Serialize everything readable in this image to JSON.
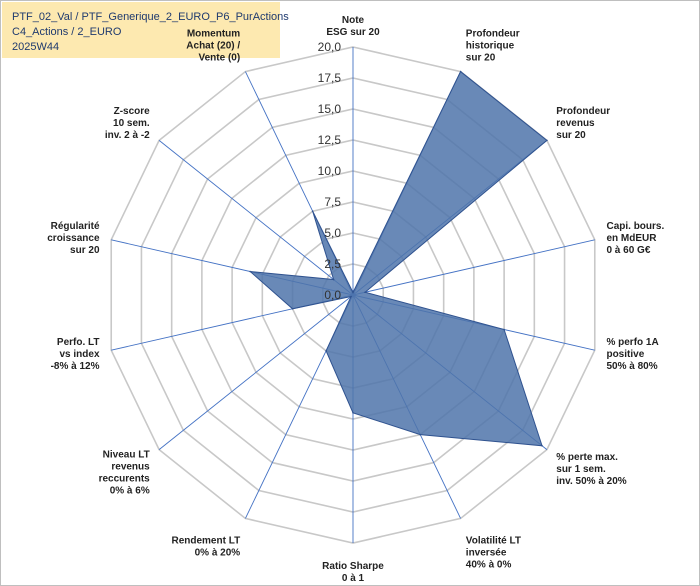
{
  "title": {
    "line1": "PTF_02_Val / PTF_Generique_2_EURO_P6_PurActions",
    "line2": "C4_Actions / 2_EURO",
    "line3": "2025W44"
  },
  "colors": {
    "fill": "#4f74aa",
    "stroke": "#2f528f",
    "grid": "#c8c8c8",
    "spoke": "#4472c4",
    "title_bg": "#fde9b0",
    "momentum": "#a07a2a"
  },
  "chart_data": {
    "type": "radar",
    "r_min": 0,
    "r_max": 20,
    "ticks": [
      "0,0",
      "2,5",
      "5,0",
      "7,5",
      "10,0",
      "12,5",
      "15,0",
      "17,5",
      "20,0"
    ],
    "axes": [
      {
        "label": [
          "Note",
          "ESG sur 20"
        ],
        "value": 0.2
      },
      {
        "label": [
          "Profondeur",
          "historique",
          "sur 20"
        ],
        "value": 20.0
      },
      {
        "label": [
          "Profondeur",
          "revenus",
          "sur 20"
        ],
        "value": 20.0
      },
      {
        "label": [
          "Capi. bours.",
          "en MdEUR",
          "0 à 60 G€"
        ],
        "value": 1.0
      },
      {
        "label": [
          "% perfo 1A",
          "positive",
          "50% à 80%"
        ],
        "value": 12.5
      },
      {
        "label": [
          "% perte max.",
          "sur 1 sem.",
          "inv. 50% à 20%"
        ],
        "value": 19.5
      },
      {
        "label": [
          "Volatilité LT",
          "inversée",
          "40% à 0%"
        ],
        "value": 12.5
      },
      {
        "label": [
          "Ratio Sharpe",
          "0 à 1"
        ],
        "value": 9.5
      },
      {
        "label": [
          "Rendement LT",
          "0% à 20%"
        ],
        "value": 5.0
      },
      {
        "label": [
          "Niveau LT",
          "revenus",
          "reccurents",
          "0% à 6%"
        ],
        "value": 0.2
      },
      {
        "label": [
          "Perfo. LT",
          "vs index",
          "-8% à 12%"
        ],
        "value": 5.0
      },
      {
        "label": [
          "Régularité",
          "croissance",
          "sur 20"
        ],
        "value": 8.5
      },
      {
        "label": [
          "Z-score",
          "10 sem.",
          "inv. 2 à -2"
        ],
        "value": 2.0
      },
      {
        "label": [
          "Momentum",
          "Achat (20) /",
          "Vente (0)"
        ],
        "value": 7.5
      }
    ]
  }
}
